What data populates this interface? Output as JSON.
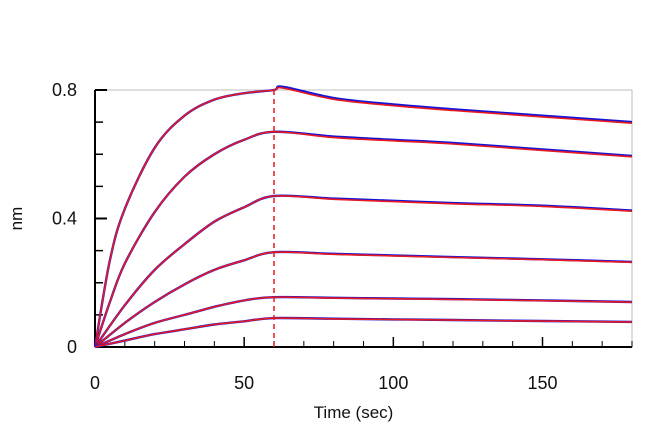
{
  "chart_data": {
    "type": "line",
    "title": "",
    "xlabel": "Time (sec)",
    "ylabel": "nm",
    "xlim": [
      0,
      180
    ],
    "ylim": [
      0,
      0.8
    ],
    "x_ticks": [
      0,
      50,
      100,
      150
    ],
    "y_ticks": [
      0,
      0.4,
      0.8
    ],
    "x_tick_labels": [
      "0",
      "50",
      "100",
      "150"
    ],
    "y_tick_labels": [
      "0",
      "0.4",
      "0.8"
    ],
    "y_minor_step": 0.1,
    "x_minor_step": 10,
    "grid": false,
    "legend": "none",
    "marker_line": {
      "x": 60,
      "style": "dashed",
      "color": "#e8191f"
    },
    "curve_colors": {
      "observed": "#1414d8",
      "fit": "#e8191f"
    },
    "assoc_end": 60,
    "series": [
      {
        "association": [
          [
            0,
            0
          ],
          [
            5,
            0.27
          ],
          [
            10,
            0.43
          ],
          [
            20,
            0.62
          ],
          [
            30,
            0.72
          ],
          [
            40,
            0.77
          ],
          [
            50,
            0.79
          ],
          [
            60,
            0.8
          ]
        ],
        "dissociation": [
          [
            60,
            0.8
          ],
          [
            63,
            0.81
          ],
          [
            80,
            0.775
          ],
          [
            100,
            0.755
          ],
          [
            120,
            0.74
          ],
          [
            150,
            0.72
          ],
          [
            180,
            0.7
          ]
        ]
      },
      {
        "association": [
          [
            0,
            0
          ],
          [
            5,
            0.14
          ],
          [
            10,
            0.26
          ],
          [
            20,
            0.42
          ],
          [
            30,
            0.53
          ],
          [
            40,
            0.6
          ],
          [
            50,
            0.645
          ],
          [
            60,
            0.67
          ]
        ],
        "dissociation": [
          [
            60,
            0.67
          ],
          [
            80,
            0.655
          ],
          [
            100,
            0.645
          ],
          [
            120,
            0.635
          ],
          [
            150,
            0.615
          ],
          [
            180,
            0.595
          ]
        ]
      },
      {
        "association": [
          [
            0,
            0
          ],
          [
            10,
            0.13
          ],
          [
            20,
            0.24
          ],
          [
            30,
            0.32
          ],
          [
            40,
            0.39
          ],
          [
            50,
            0.435
          ],
          [
            60,
            0.47
          ]
        ],
        "dissociation": [
          [
            60,
            0.47
          ],
          [
            80,
            0.462
          ],
          [
            100,
            0.455
          ],
          [
            120,
            0.448
          ],
          [
            150,
            0.44
          ],
          [
            180,
            0.425
          ]
        ]
      },
      {
        "association": [
          [
            0,
            0
          ],
          [
            10,
            0.075
          ],
          [
            20,
            0.14
          ],
          [
            30,
            0.195
          ],
          [
            40,
            0.24
          ],
          [
            50,
            0.27
          ],
          [
            60,
            0.295
          ]
        ],
        "dissociation": [
          [
            60,
            0.295
          ],
          [
            80,
            0.29
          ],
          [
            100,
            0.285
          ],
          [
            120,
            0.28
          ],
          [
            150,
            0.273
          ],
          [
            180,
            0.265
          ]
        ]
      },
      {
        "association": [
          [
            0,
            0
          ],
          [
            10,
            0.04
          ],
          [
            20,
            0.075
          ],
          [
            30,
            0.1
          ],
          [
            40,
            0.125
          ],
          [
            50,
            0.145
          ],
          [
            60,
            0.155
          ]
        ],
        "dissociation": [
          [
            60,
            0.155
          ],
          [
            80,
            0.153
          ],
          [
            100,
            0.151
          ],
          [
            120,
            0.149
          ],
          [
            150,
            0.145
          ],
          [
            180,
            0.14
          ]
        ]
      },
      {
        "association": [
          [
            0,
            0
          ],
          [
            10,
            0.02
          ],
          [
            20,
            0.04
          ],
          [
            30,
            0.055
          ],
          [
            40,
            0.07
          ],
          [
            50,
            0.08
          ],
          [
            60,
            0.09
          ]
        ],
        "dissociation": [
          [
            60,
            0.09
          ],
          [
            80,
            0.088
          ],
          [
            100,
            0.086
          ],
          [
            120,
            0.084
          ],
          [
            150,
            0.081
          ],
          [
            180,
            0.078
          ]
        ]
      }
    ]
  }
}
